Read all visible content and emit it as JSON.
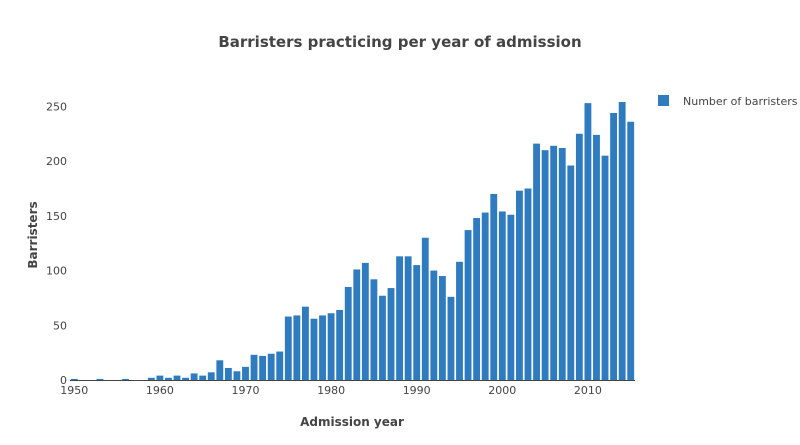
{
  "chart_data": {
    "type": "bar",
    "title": "Barristers practicing per year of admission",
    "xlabel": "Admission year",
    "ylabel": "Barristers",
    "xlim": [
      1949.5,
      2015.5
    ],
    "ylim": [
      0,
      265
    ],
    "xticks": [
      1950,
      1960,
      1970,
      1980,
      1990,
      2000,
      2010
    ],
    "yticks": [
      0,
      50,
      100,
      150,
      200,
      250
    ],
    "grid": false,
    "legend_position": "top-right",
    "color": "#2e7bbf",
    "series": [
      {
        "name": "Number of barristers",
        "x": [
          1950,
          1953,
          1956,
          1959,
          1960,
          1961,
          1962,
          1963,
          1964,
          1965,
          1966,
          1967,
          1968,
          1969,
          1970,
          1971,
          1972,
          1973,
          1974,
          1975,
          1976,
          1977,
          1978,
          1979,
          1980,
          1981,
          1982,
          1983,
          1984,
          1985,
          1986,
          1987,
          1988,
          1989,
          1990,
          1991,
          1992,
          1993,
          1994,
          1995,
          1996,
          1997,
          1998,
          1999,
          2000,
          2001,
          2002,
          2003,
          2004,
          2005,
          2006,
          2007,
          2008,
          2009,
          2010,
          2011,
          2012,
          2013,
          2014,
          2015
        ],
        "values": [
          1,
          1,
          1,
          2,
          4,
          2,
          4,
          2,
          6,
          4,
          7,
          18,
          11,
          8,
          12,
          23,
          22,
          24,
          26,
          58,
          59,
          67,
          56,
          59,
          61,
          64,
          85,
          101,
          107,
          92,
          77,
          84,
          113,
          113,
          105,
          130,
          100,
          95,
          76,
          108,
          137,
          148,
          153,
          170,
          154,
          151,
          173,
          175,
          216,
          210,
          214,
          212,
          196,
          225,
          253,
          224,
          205,
          244,
          254,
          236
        ]
      }
    ]
  }
}
